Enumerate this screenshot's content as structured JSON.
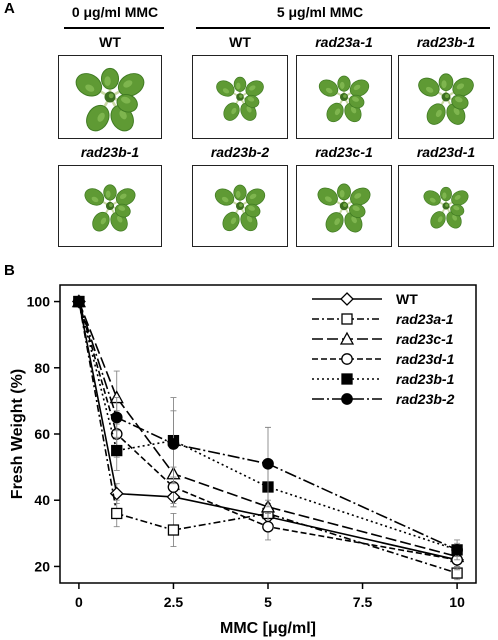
{
  "panel_a": {
    "letter": "A",
    "group_left_title": "0 μg/ml MMC",
    "group_right_title": "5 μg/ml MMC",
    "photos": [
      {
        "label": "WT",
        "italic": false,
        "size": 1.25
      },
      {
        "label": "WT",
        "italic": false,
        "size": 0.9
      },
      {
        "label": "rad23a-1",
        "italic": true,
        "size": 0.95
      },
      {
        "label": "rad23b-1",
        "italic": true,
        "size": 1.05
      },
      {
        "label": "rad23b-1",
        "italic": true,
        "size": 0.95
      },
      {
        "label": "rad23b-2",
        "italic": true,
        "size": 0.95
      },
      {
        "label": "rad23c-1",
        "italic": true,
        "size": 1.0
      },
      {
        "label": "rad23d-1",
        "italic": true,
        "size": 0.85
      }
    ]
  },
  "panel_b": {
    "letter": "B",
    "chart_data": {
      "type": "line",
      "xlabel": "MMC [μg/ml]",
      "ylabel": "Fresh Weight (%)",
      "x": [
        0,
        1,
        2.5,
        5,
        10
      ],
      "xlim": [
        -0.5,
        10.5
      ],
      "ylim": [
        15,
        105
      ],
      "xticks": [
        "0",
        "2.5",
        "5",
        "7.5",
        "10"
      ],
      "xtick_values": [
        0,
        2.5,
        5,
        7.5,
        10
      ],
      "yticks": [
        "20",
        "40",
        "60",
        "80",
        "100"
      ],
      "ytick_values": [
        20,
        40,
        60,
        80,
        100
      ],
      "legend_position": "top-right",
      "grid": false,
      "series": [
        {
          "name": "WT",
          "marker": "diamond-open",
          "dash": "solid",
          "values": [
            100,
            42,
            41,
            35,
            22
          ],
          "err": [
            0,
            3,
            3,
            3,
            2
          ]
        },
        {
          "name": "rad23a-1",
          "marker": "square-open",
          "dash": "dashdot",
          "values": [
            100,
            36,
            31,
            36,
            18
          ],
          "err": [
            0,
            4,
            5,
            3,
            2
          ]
        },
        {
          "name": "rad23c-1",
          "marker": "triangle-open",
          "dash": "longdash",
          "values": [
            100,
            71,
            48,
            38,
            23
          ],
          "err": [
            0,
            8,
            9,
            5,
            3
          ]
        },
        {
          "name": "rad23d-1",
          "marker": "circle-open",
          "dash": "dash",
          "values": [
            100,
            60,
            44,
            32,
            22
          ],
          "err": [
            0,
            7,
            6,
            4,
            3
          ]
        },
        {
          "name": "rad23b-1",
          "marker": "square-filled",
          "dash": "dot",
          "values": [
            100,
            55,
            58,
            44,
            25
          ],
          "err": [
            0,
            6,
            13,
            6,
            2
          ]
        },
        {
          "name": "rad23b-2",
          "marker": "circle-filled",
          "dash": "longdashdot",
          "values": [
            100,
            65,
            57,
            51,
            25
          ],
          "err": [
            0,
            6,
            10,
            11,
            3
          ]
        }
      ]
    }
  }
}
